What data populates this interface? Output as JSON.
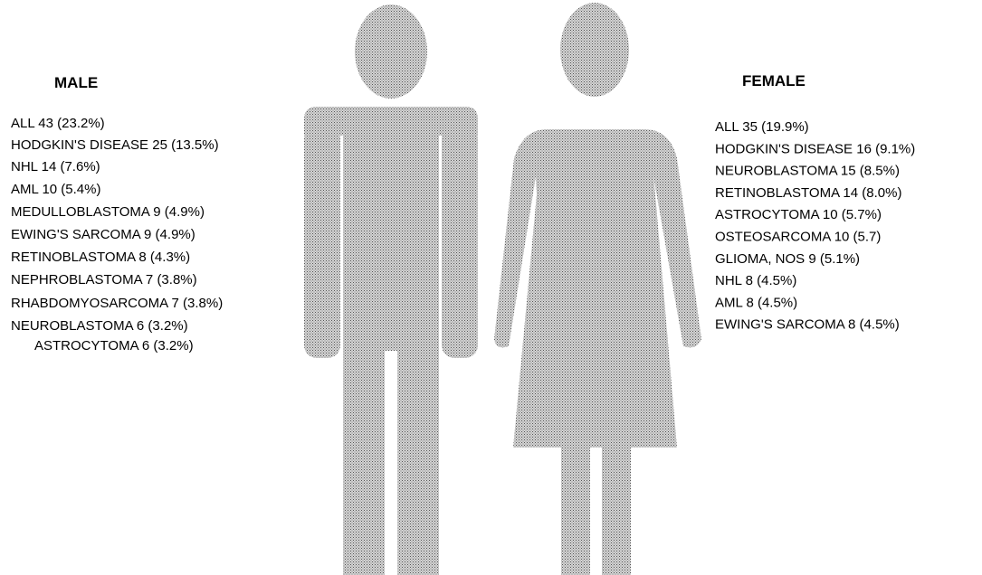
{
  "male": {
    "title": "MALE",
    "entries": [
      "ALL 43 (23.2%)",
      "HODGKIN'S DISEASE 25 (13.5%)",
      "NHL 14 (7.6%)",
      "AML 10 (5.4%)",
      "MEDULLOBLASTOMA 9 (4.9%)",
      "EWING'S SARCOMA 9 (4.9%)",
      "RETINOBLASTOMA 8 (4.3%)",
      "NEPHROBLASTOMA 7 (3.8%)",
      "RHABDOMYOSARCOMA 7 (3.8%)",
      "NEUROBLASTOMA 6 (3.2%)",
      "ASTROCYTOMA 6 (3.2%)"
    ]
  },
  "female": {
    "title": "FEMALE",
    "entries": [
      "ALL 35 (19.9%)",
      "HODGKIN'S DISEASE 16 (9.1%)",
      "NEUROBLASTOMA 15 (8.5%)",
      "RETINOBLASTOMA 14 (8.0%)",
      "ASTROCYTOMA 10 (5.7%)",
      "OSTEOSARCOMA 10 (5.7)",
      "GLIOMA, NOS 9 (5.1%)",
      "NHL 8 (4.5%)",
      "AML 8 (4.5%)",
      "EWING'S SARCOMA 8 (4.5%)"
    ]
  }
}
